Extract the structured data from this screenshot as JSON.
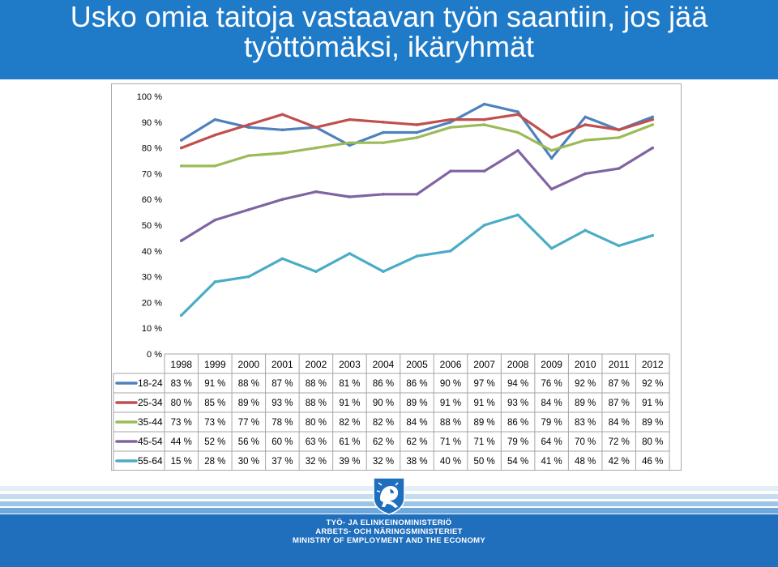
{
  "page": {
    "title_line1": "Usko omia taitoja vastaavan työn saantiin, jos jää",
    "title_line2": "työttömäksi, ikäryhmät",
    "ministry_fi": "TYÖ- JA ELINKEINOMINISTERIÖ",
    "ministry_sv": "ARBETS- OCH NÄRINGSMINISTERIET",
    "ministry_en": "MINISTRY OF EMPLOYMENT AND THE ECONOMY",
    "header_color": "#1f7bc8",
    "logo_icon": "finnish-lion-crest-icon"
  },
  "chart_data": {
    "type": "line",
    "title": "",
    "xlabel": "",
    "ylabel": "",
    "ylim": [
      0,
      100
    ],
    "y_ticks": [
      "0 %",
      "10 %",
      "20 %",
      "30 %",
      "40 %",
      "50 %",
      "60 %",
      "70 %",
      "80 %",
      "90 %",
      "100 %"
    ],
    "grid": false,
    "legend": "data-table-below",
    "x": [
      "1998",
      "1999",
      "2000",
      "2001",
      "2002",
      "2003",
      "2004",
      "2005",
      "2006",
      "2007",
      "2008",
      "2009",
      "2010",
      "2011",
      "2012"
    ],
    "series": [
      {
        "name": "18-24",
        "color": "#4f81bd",
        "values": [
          83,
          91,
          88,
          87,
          88,
          81,
          86,
          86,
          90,
          97,
          94,
          76,
          92,
          87,
          92
        ],
        "labels": [
          "83 %",
          "91 %",
          "88 %",
          "87 %",
          "88 %",
          "81 %",
          "86 %",
          "86 %",
          "90 %",
          "97 %",
          "94 %",
          "76 %",
          "92 %",
          "87 %",
          "92 %"
        ]
      },
      {
        "name": "25-34",
        "color": "#c0504d",
        "values": [
          80,
          85,
          89,
          93,
          88,
          91,
          90,
          89,
          91,
          91,
          93,
          84,
          89,
          87,
          91
        ],
        "labels": [
          "80 %",
          "85 %",
          "89 %",
          "93 %",
          "88 %",
          "91 %",
          "90 %",
          "89 %",
          "91 %",
          "91 %",
          "93 %",
          "84 %",
          "89 %",
          "87 %",
          "91 %"
        ]
      },
      {
        "name": "35-44",
        "color": "#9bbb59",
        "values": [
          73,
          73,
          77,
          78,
          80,
          82,
          82,
          84,
          88,
          89,
          86,
          79,
          83,
          84,
          89
        ],
        "labels": [
          "73 %",
          "73 %",
          "77 %",
          "78 %",
          "80 %",
          "82 %",
          "82 %",
          "84 %",
          "88 %",
          "89 %",
          "86 %",
          "79 %",
          "83 %",
          "84 %",
          "89 %"
        ]
      },
      {
        "name": "45-54",
        "color": "#8064a2",
        "values": [
          44,
          52,
          56,
          60,
          63,
          61,
          62,
          62,
          71,
          71,
          79,
          64,
          70,
          72,
          80
        ],
        "labels": [
          "44 %",
          "52 %",
          "56 %",
          "60 %",
          "63 %",
          "61 %",
          "62 %",
          "62 %",
          "71 %",
          "71 %",
          "79 %",
          "64 %",
          "70 %",
          "72 %",
          "80 %"
        ]
      },
      {
        "name": "55-64",
        "color": "#4bacc6",
        "values": [
          15,
          28,
          30,
          37,
          32,
          39,
          32,
          38,
          40,
          50,
          54,
          41,
          48,
          42,
          46
        ],
        "labels": [
          "15 %",
          "28 %",
          "30 %",
          "37 %",
          "32 %",
          "39 %",
          "32 %",
          "38 %",
          "40 %",
          "50 %",
          "54 %",
          "41 %",
          "48 %",
          "42 %",
          "46 %"
        ]
      }
    ]
  }
}
